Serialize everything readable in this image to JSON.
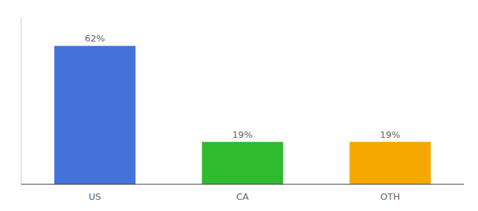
{
  "chart_data": {
    "type": "bar",
    "categories": [
      "US",
      "CA",
      "OTH"
    ],
    "values": [
      62,
      19,
      19
    ],
    "value_labels": [
      "62%",
      "19%",
      "19%"
    ],
    "colors": [
      "#4472DB",
      "#2EBB2E",
      "#F5A800"
    ],
    "ylim": [
      0,
      75
    ],
    "data_labels": true,
    "tick_labels": "x"
  }
}
